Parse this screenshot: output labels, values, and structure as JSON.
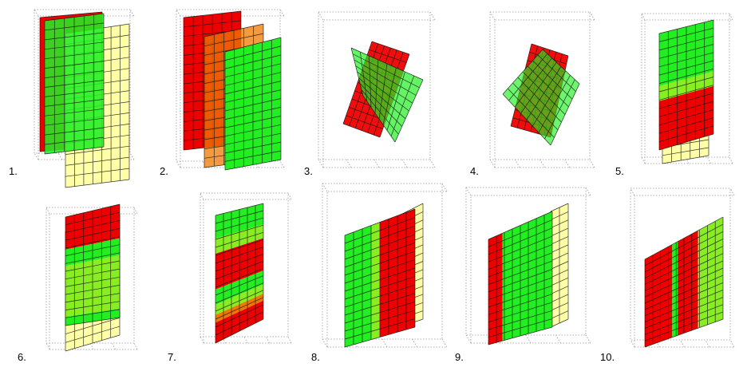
{
  "colors": {
    "red": "#ee0000",
    "green": "#22ee22",
    "yellow": "#ffffa8",
    "orange": "#f07800",
    "lime": "#88ee22",
    "grid": "#111111",
    "box": "#999999"
  },
  "panels": [
    {
      "label": "1."
    },
    {
      "label": "2."
    },
    {
      "label": "3."
    },
    {
      "label": "4."
    },
    {
      "label": "5."
    },
    {
      "label": "6."
    },
    {
      "label": "7."
    },
    {
      "label": "8."
    },
    {
      "label": "9."
    },
    {
      "label": "10."
    }
  ]
}
